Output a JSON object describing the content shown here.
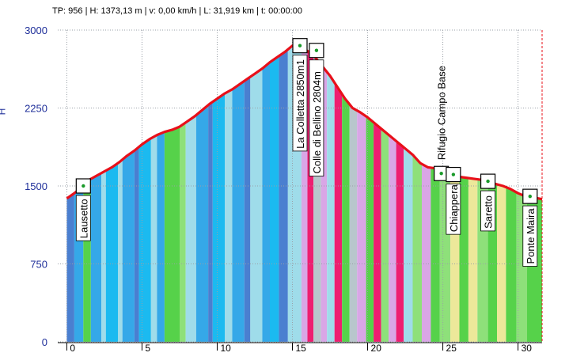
{
  "status_bar": {
    "text": "TP: 956 | H: 1373,13 m | v: 0,00 km/h | L: 31,919 km | t: 00:00:00"
  },
  "colors": {
    "profile_line": "#e8101a",
    "marker_line": "#e8101a",
    "axis_text": "#1f2f9a",
    "grid": "#9aa0a8",
    "waypoint_dot": "#1a9a2a"
  },
  "chart_data": {
    "type": "area",
    "title": "",
    "xlabel": "",
    "ylabel": "H",
    "xlim": [
      -0.6,
      31.6
    ],
    "ylim": [
      0,
      3000
    ],
    "x_ticks": [
      0,
      5,
      10,
      15,
      20,
      25,
      30
    ],
    "x_tick_labels": [
      "0",
      "5",
      "10",
      "15",
      "20",
      "25",
      "30"
    ],
    "y_ticks": [
      0,
      750,
      1500,
      2250,
      3000
    ],
    "y_tick_labels": [
      "0",
      "750",
      "1500",
      "2250",
      "3000"
    ],
    "grid": true,
    "current_position_km": 31.92,
    "profile": {
      "x": [
        0,
        0.5,
        1.0,
        1.5,
        2.0,
        2.5,
        3.0,
        3.5,
        4.0,
        4.5,
        5.0,
        5.5,
        6.0,
        6.5,
        7.0,
        7.5,
        8.0,
        8.5,
        9.0,
        9.5,
        10.0,
        10.5,
        11.0,
        11.5,
        12.0,
        12.5,
        13.0,
        13.5,
        14.0,
        14.5,
        15.0,
        15.5,
        16.0,
        16.5,
        17.0,
        17.5,
        18.0,
        18.5,
        19.0,
        19.5,
        20.0,
        20.5,
        21.0,
        21.5,
        22.0,
        22.5,
        23.0,
        23.5,
        24.0,
        24.5,
        25.0,
        25.5,
        26.0,
        26.5,
        27.0,
        27.5,
        28.0,
        28.5,
        29.0,
        29.5,
        30.0,
        30.5,
        31.0,
        31.6
      ],
      "y": [
        1380,
        1430,
        1490,
        1560,
        1600,
        1640,
        1680,
        1730,
        1790,
        1840,
        1900,
        1950,
        1990,
        2020,
        2040,
        2070,
        2120,
        2170,
        2230,
        2290,
        2340,
        2390,
        2430,
        2480,
        2530,
        2580,
        2630,
        2690,
        2740,
        2790,
        2850,
        2830,
        2800,
        2740,
        2650,
        2560,
        2450,
        2340,
        2250,
        2210,
        2160,
        2100,
        2040,
        1980,
        1920,
        1860,
        1800,
        1720,
        1680,
        1670,
        1640,
        1610,
        1590,
        1580,
        1570,
        1560,
        1540,
        1520,
        1500,
        1470,
        1430,
        1400,
        1390,
        1373
      ]
    },
    "slope_band_colors": [
      "#4a7fd0",
      "#35a8e8",
      "#1bbaf0",
      "#9fdcea",
      "#56d24a",
      "#8ee07a",
      "#ece89a",
      "#d9a6e6",
      "#ee1e70",
      "#b8c6cc"
    ],
    "slope_bands": [
      {
        "x0": 0.0,
        "x1": 0.5,
        "c": 0
      },
      {
        "x0": 0.5,
        "x1": 1.1,
        "c": 1
      },
      {
        "x0": 1.1,
        "x1": 1.6,
        "c": 4
      },
      {
        "x0": 1.6,
        "x1": 2.3,
        "c": 1
      },
      {
        "x0": 2.3,
        "x1": 2.6,
        "c": 3
      },
      {
        "x0": 2.6,
        "x1": 3.4,
        "c": 2
      },
      {
        "x0": 3.4,
        "x1": 3.7,
        "c": 3
      },
      {
        "x0": 3.7,
        "x1": 4.5,
        "c": 1
      },
      {
        "x0": 4.5,
        "x1": 4.8,
        "c": 0
      },
      {
        "x0": 4.8,
        "x1": 5.6,
        "c": 2
      },
      {
        "x0": 5.6,
        "x1": 6.0,
        "c": 3
      },
      {
        "x0": 6.0,
        "x1": 6.5,
        "c": 1
      },
      {
        "x0": 6.5,
        "x1": 7.5,
        "c": 4
      },
      {
        "x0": 7.5,
        "x1": 7.9,
        "c": 5
      },
      {
        "x0": 7.9,
        "x1": 8.6,
        "c": 3
      },
      {
        "x0": 8.6,
        "x1": 9.4,
        "c": 1
      },
      {
        "x0": 9.4,
        "x1": 9.7,
        "c": 0
      },
      {
        "x0": 9.7,
        "x1": 10.5,
        "c": 2
      },
      {
        "x0": 10.5,
        "x1": 11.0,
        "c": 3
      },
      {
        "x0": 11.0,
        "x1": 11.8,
        "c": 1
      },
      {
        "x0": 11.8,
        "x1": 12.2,
        "c": 0
      },
      {
        "x0": 12.2,
        "x1": 13.0,
        "c": 3
      },
      {
        "x0": 13.0,
        "x1": 13.5,
        "c": 1
      },
      {
        "x0": 13.5,
        "x1": 14.1,
        "c": 2
      },
      {
        "x0": 14.1,
        "x1": 14.7,
        "c": 0
      },
      {
        "x0": 14.7,
        "x1": 15.6,
        "c": 3
      },
      {
        "x0": 15.6,
        "x1": 16.0,
        "c": 7
      },
      {
        "x0": 16.0,
        "x1": 16.4,
        "c": 8
      },
      {
        "x0": 16.4,
        "x1": 16.9,
        "c": 9
      },
      {
        "x0": 16.9,
        "x1": 17.3,
        "c": 7
      },
      {
        "x0": 17.3,
        "x1": 17.8,
        "c": 3
      },
      {
        "x0": 17.8,
        "x1": 18.3,
        "c": 8
      },
      {
        "x0": 18.3,
        "x1": 18.8,
        "c": 4
      },
      {
        "x0": 18.8,
        "x1": 19.3,
        "c": 9
      },
      {
        "x0": 19.3,
        "x1": 19.9,
        "c": 7
      },
      {
        "x0": 19.9,
        "x1": 20.4,
        "c": 4
      },
      {
        "x0": 20.4,
        "x1": 20.9,
        "c": 8
      },
      {
        "x0": 20.9,
        "x1": 21.4,
        "c": 5
      },
      {
        "x0": 21.4,
        "x1": 21.9,
        "c": 7
      },
      {
        "x0": 21.9,
        "x1": 22.4,
        "c": 8
      },
      {
        "x0": 22.4,
        "x1": 23.0,
        "c": 3
      },
      {
        "x0": 23.0,
        "x1": 23.6,
        "c": 5
      },
      {
        "x0": 23.6,
        "x1": 24.2,
        "c": 7
      },
      {
        "x0": 24.2,
        "x1": 24.8,
        "c": 4
      },
      {
        "x0": 24.8,
        "x1": 25.5,
        "c": 5
      },
      {
        "x0": 25.5,
        "x1": 26.1,
        "c": 6
      },
      {
        "x0": 26.1,
        "x1": 26.7,
        "c": 4
      },
      {
        "x0": 26.7,
        "x1": 27.3,
        "c": 6
      },
      {
        "x0": 27.3,
        "x1": 28.0,
        "c": 5
      },
      {
        "x0": 28.0,
        "x1": 28.6,
        "c": 4
      },
      {
        "x0": 28.6,
        "x1": 29.2,
        "c": 6
      },
      {
        "x0": 29.2,
        "x1": 29.9,
        "c": 4
      },
      {
        "x0": 29.9,
        "x1": 30.6,
        "c": 5
      },
      {
        "x0": 30.6,
        "x1": 31.6,
        "c": 4
      }
    ],
    "waypoints": [
      {
        "name": "Lausetto",
        "x": 1.1,
        "y": 1500,
        "label_pos": "below"
      },
      {
        "name": "La Colletta 2850m1",
        "x": 15.5,
        "y": 2850,
        "label_pos": "below"
      },
      {
        "name": "Colle di Bellino 2804m",
        "x": 16.6,
        "y": 2804,
        "label_pos": "below"
      },
      {
        "name": "Rifugio Campo Base",
        "x": 24.9,
        "y": 1620,
        "label_pos": "above"
      },
      {
        "name": "Chiappera",
        "x": 25.7,
        "y": 1610,
        "label_pos": "below"
      },
      {
        "name": "Saretto",
        "x": 28.0,
        "y": 1545,
        "label_pos": "below"
      },
      {
        "name": "Ponte Maira",
        "x": 30.8,
        "y": 1400,
        "label_pos": "below"
      }
    ]
  }
}
